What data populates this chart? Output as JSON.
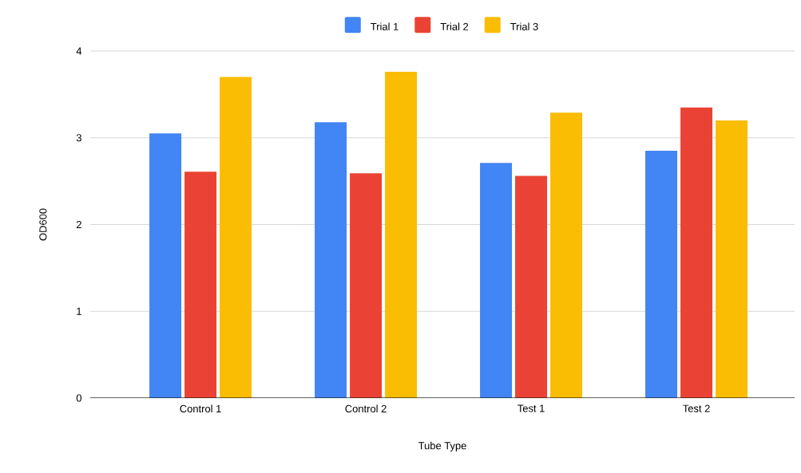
{
  "chart_data": {
    "type": "bar",
    "xlabel": "Tube Type",
    "ylabel": "OD600",
    "categories": [
      "Control 1",
      "Control 2",
      "Test 1",
      "Test 2"
    ],
    "series": [
      {
        "name": "Trial 1",
        "color": "#4285f4",
        "values": [
          3.05,
          3.18,
          2.71,
          2.85
        ]
      },
      {
        "name": "Trial 2",
        "color": "#ea4335",
        "values": [
          2.61,
          2.59,
          2.56,
          3.35
        ]
      },
      {
        "name": "Trial 3",
        "color": "#fbbc04",
        "values": [
          3.7,
          3.76,
          3.29,
          3.2
        ]
      }
    ],
    "ylim": [
      0,
      4
    ],
    "yticks": [
      0,
      1,
      2,
      3,
      4
    ],
    "grid": "y",
    "legend": "top"
  }
}
